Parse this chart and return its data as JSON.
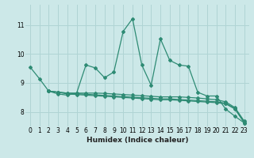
{
  "title": "",
  "xlabel": "Humidex (Indice chaleur)",
  "ylabel": "",
  "bg_color": "#cce8e8",
  "line_color": "#2e8b74",
  "grid_color": "#b0d4d4",
  "xlim": [
    -0.5,
    23.5
  ],
  "ylim": [
    7.5,
    11.7
  ],
  "yticks": [
    8,
    9,
    10,
    11
  ],
  "xticks": [
    0,
    1,
    2,
    3,
    4,
    5,
    6,
    7,
    8,
    9,
    10,
    11,
    12,
    13,
    14,
    15,
    16,
    17,
    18,
    19,
    20,
    21,
    22,
    23
  ],
  "series": [
    {
      "x": [
        0,
        1,
        2,
        3,
        4,
        5,
        6,
        7,
        8,
        9,
        10,
        11,
        12,
        13,
        14,
        15,
        16,
        17,
        18,
        19,
        20,
        21,
        22,
        23
      ],
      "y": [
        9.55,
        9.15,
        8.72,
        8.62,
        8.58,
        8.65,
        9.62,
        9.52,
        9.18,
        9.38,
        10.78,
        11.22,
        9.62,
        8.92,
        10.52,
        9.78,
        9.62,
        9.58,
        8.68,
        8.55,
        8.55,
        8.1,
        7.85,
        7.62
      ]
    },
    {
      "x": [
        2,
        3,
        4,
        5,
        6,
        7,
        8,
        9,
        10,
        11,
        12,
        13,
        14,
        15,
        16,
        17,
        18,
        19,
        20,
        21,
        22,
        23
      ],
      "y": [
        8.72,
        8.68,
        8.62,
        8.6,
        8.58,
        8.56,
        8.54,
        8.52,
        8.5,
        8.48,
        8.46,
        8.44,
        8.42,
        8.42,
        8.4,
        8.38,
        8.36,
        8.34,
        8.32,
        8.28,
        8.1,
        7.62
      ]
    },
    {
      "x": [
        2,
        3,
        4,
        5,
        6,
        7,
        8,
        9,
        10,
        11,
        12,
        13,
        14,
        15,
        16,
        17,
        18,
        19,
        20,
        21,
        22,
        23
      ],
      "y": [
        8.72,
        8.68,
        8.65,
        8.63,
        8.61,
        8.59,
        8.57,
        8.55,
        8.53,
        8.51,
        8.49,
        8.47,
        8.45,
        8.45,
        8.43,
        8.41,
        8.39,
        8.37,
        8.35,
        8.3,
        8.12,
        7.65
      ]
    },
    {
      "x": [
        2,
        3,
        4,
        5,
        6,
        7,
        8,
        9,
        10,
        11,
        12,
        13,
        14,
        15,
        16,
        17,
        18,
        19,
        20,
        21,
        22,
        23
      ],
      "y": [
        8.72,
        8.68,
        8.65,
        8.65,
        8.65,
        8.65,
        8.64,
        8.62,
        8.6,
        8.58,
        8.56,
        8.54,
        8.52,
        8.52,
        8.52,
        8.5,
        8.48,
        8.45,
        8.42,
        8.35,
        8.15,
        7.68
      ]
    }
  ]
}
